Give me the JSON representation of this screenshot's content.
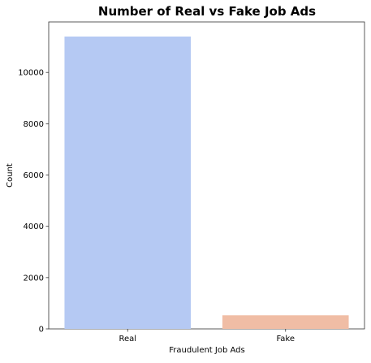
{
  "chart_data": {
    "type": "bar",
    "title": "Number of Real vs Fake Job Ads",
    "xlabel": "Fraudulent Job Ads",
    "ylabel": "Count",
    "categories": [
      "Real",
      "Fake"
    ],
    "values": [
      11400,
      530
    ],
    "colors": [
      "#b5c9f3",
      "#f0bda5"
    ],
    "ylim": [
      0,
      11970
    ],
    "yticks": [
      0,
      2000,
      4000,
      6000,
      8000,
      10000
    ],
    "grid": false,
    "legend": "none"
  }
}
